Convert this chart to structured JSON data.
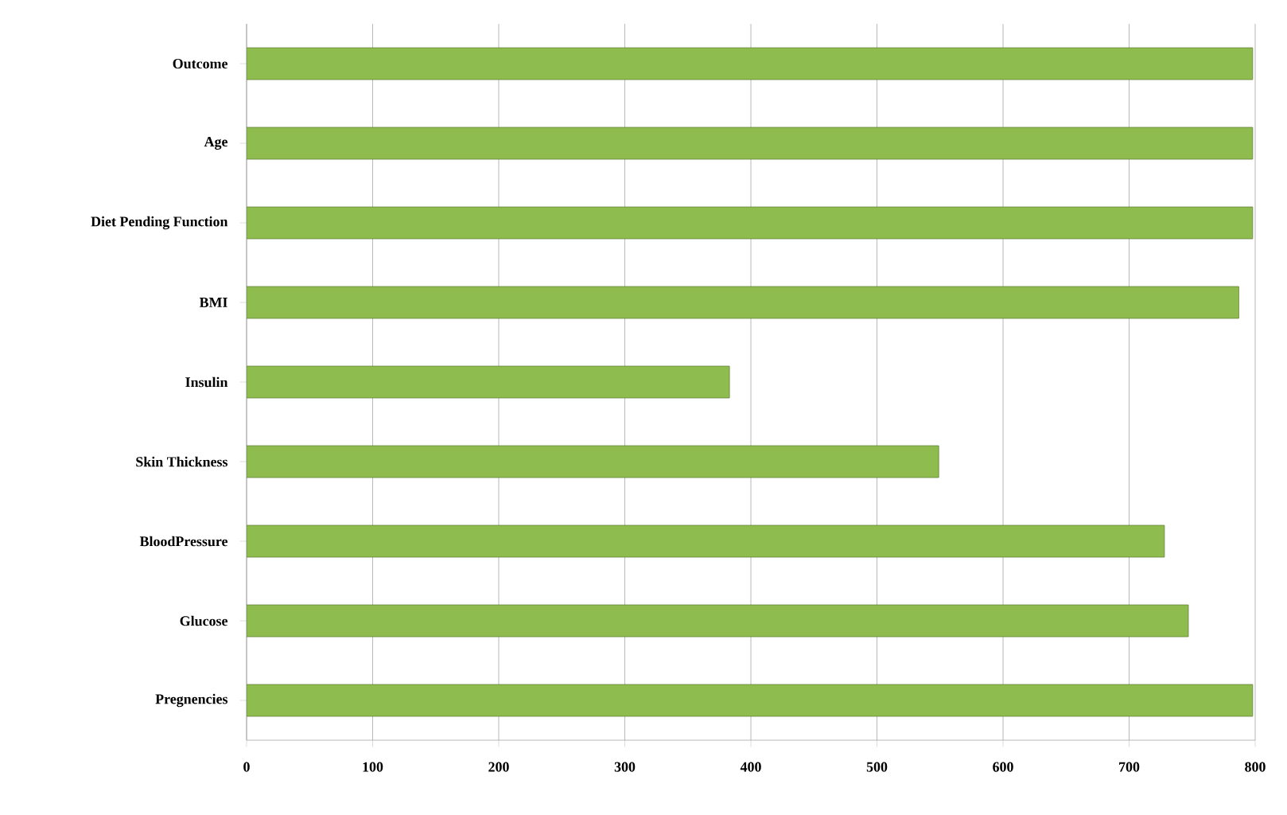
{
  "chart_data": {
    "type": "bar",
    "orientation": "horizontal",
    "categories": [
      "Outcome",
      "Age",
      "Diet Pending Function",
      "BMI",
      "Insulin",
      "Skin Thickness",
      "BloodPressure",
      "Glucose",
      "Pregnencies"
    ],
    "values": [
      798,
      798,
      798,
      787,
      383,
      549,
      728,
      747,
      798
    ],
    "color": "#8fbc4f",
    "xlim": [
      0,
      800
    ],
    "xticks": [
      0,
      100,
      200,
      300,
      400,
      500,
      600,
      700,
      800
    ],
    "grid": "x"
  }
}
